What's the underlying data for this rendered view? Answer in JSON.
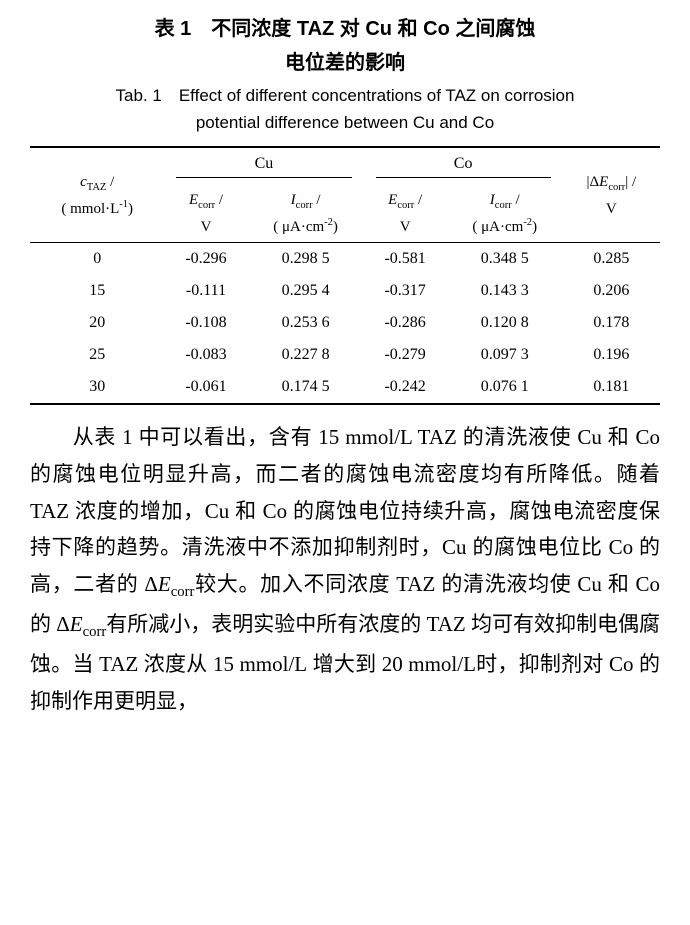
{
  "title_zh_line1": "表 1　不同浓度 TAZ 对 Cu 和 Co 之间腐蚀",
  "title_zh_line2": "电位差的影响",
  "title_en_line1": "Tab. 1　Effect of different concentrations of TAZ on corrosion",
  "title_en_line2": "potential difference between Cu and Co",
  "metal_cu": "Cu",
  "metal_co": "Co",
  "conc_hdr_top_html": "<span class='it'>c</span><span class='sub'>TAZ</span> /",
  "conc_hdr_bot_html": "( mmol·L<span class='sup'>-1</span>)",
  "ecorr_hdr_top_html": "<span class='it'>E</span><span class='sub'>corr</span> /",
  "ecorr_hdr_bot": "V",
  "icorr_hdr_top_html": "<span class='it'>I</span><span class='sub'>corr</span> /",
  "icorr_hdr_bot_html": "( μA·cm<span class='sup'>-2</span>)",
  "delta_hdr_top_html": "|Δ<span class='it'>E</span><span class='sub'>corr</span>| /",
  "delta_hdr_bot": "V",
  "rows": [
    {
      "c": "0",
      "cu_e": "-0.296",
      "cu_i": "0.298 5",
      "co_e": "-0.581",
      "co_i": "0.348 5",
      "d": "0.285"
    },
    {
      "c": "15",
      "cu_e": "-0.111",
      "cu_i": "0.295 4",
      "co_e": "-0.317",
      "co_i": "0.143 3",
      "d": "0.206"
    },
    {
      "c": "20",
      "cu_e": "-0.108",
      "cu_i": "0.253 6",
      "co_e": "-0.286",
      "co_i": "0.120 8",
      "d": "0.178"
    },
    {
      "c": "25",
      "cu_e": "-0.083",
      "cu_i": "0.227 8",
      "co_e": "-0.279",
      "co_i": "0.097 3",
      "d": "0.196"
    },
    {
      "c": "30",
      "cu_e": "-0.061",
      "cu_i": "0.174 5",
      "co_e": "-0.242",
      "co_i": "0.076 1",
      "d": "0.181"
    }
  ],
  "body_html": "<span class='indent'></span>从表 1 中可以看出，含有 <span class='times'>15 mmol/L TAZ</span> 的清洗液使 <span class='times'>Cu</span> 和 <span class='times'>Co</span> 的腐蚀电位明显升高，而二者的腐蚀电流密度均有所降低。随着 <span class='times'>TAZ</span> 浓度的增加，<span class='times'>Cu</span> 和 <span class='times'>Co</span> 的腐蚀电位持续升高，腐蚀电流密度保持下降的趋势。清洗液中不添加抑制剂时，<span class='times'>Cu</span> 的腐蚀电位比 <span class='times'>Co</span> 的高，二者的 Δ<span class='it'>E</span><span class='sub'>corr</span>较大。加入不同浓度 <span class='times'>TAZ</span> 的清洗液均使 <span class='times'>Cu</span> 和 <span class='times'>Co</span> 的 Δ<span class='it'>E</span><span class='sub'>corr</span>有所减小，表明实验中所有浓度的 <span class='times'>TAZ</span> 均可有效抑制电偶腐蚀。当 <span class='times'>TAZ</span> 浓度从 <span class='times'>15 mmol/L</span> 增大到 <span class='times'>20 mmol/L</span>时，抑制剂对 <span class='times'>Co</span> 的抑制作用更明显，",
  "colors": {
    "text": "#000000",
    "background": "#ffffff",
    "rule": "#000000"
  }
}
